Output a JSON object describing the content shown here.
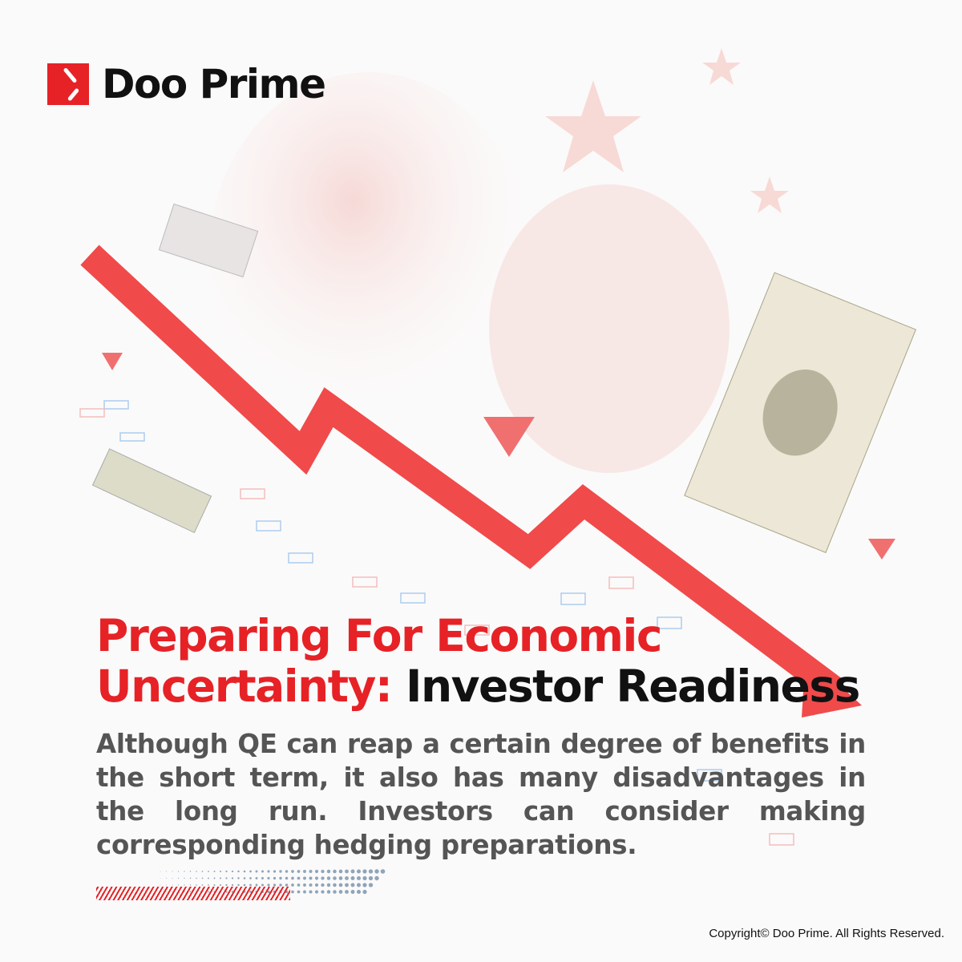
{
  "brand": {
    "name": "Doo Prime",
    "color": "#e62226"
  },
  "title": {
    "red_part": "Preparing For Economic Uncertainty:",
    "black_part": " Investor Readiness"
  },
  "description": "Although QE can reap a certain degree of benefits in the short term, it also has many disadvantages in the long run. Investors can consider making corresponding hedging preparations.",
  "copyright": "Copyright© Doo Prime. All Rights Reserved.",
  "colors": {
    "accent": "#e62226",
    "arrow": "#f04a4a",
    "text": "#555555"
  }
}
